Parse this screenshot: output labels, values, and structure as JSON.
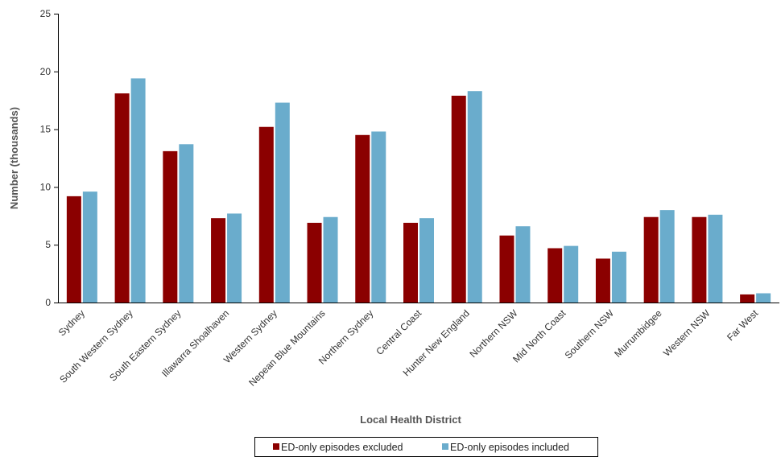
{
  "chart_data": {
    "type": "bar",
    "title": "",
    "xlabel": "Local Health District",
    "ylabel": "Number (thousands)",
    "ylim": [
      0,
      25
    ],
    "yticks": [
      0,
      5,
      10,
      15,
      20,
      25
    ],
    "grid": false,
    "legend_position": "bottom",
    "categories": [
      "Sydney",
      "South Western Sydney",
      "South Eastern Sydney",
      "Illawarra Shoalhaven",
      "Western Sydney",
      "Nepean Blue Mountains",
      "Northern Sydney",
      "Central Coast",
      "Hunter New England",
      "Northern NSW",
      "Mid North Coast",
      "Southern NSW",
      "Murrumbidgee",
      "Western NSW",
      "Far West"
    ],
    "series": [
      {
        "name": "ED-only episodes excluded",
        "color": "#8b0000",
        "values": [
          9.2,
          18.1,
          13.1,
          7.3,
          15.2,
          6.9,
          14.5,
          6.9,
          17.9,
          5.8,
          4.7,
          3.8,
          7.4,
          7.4,
          0.7
        ]
      },
      {
        "name": "ED-only episodes included",
        "color": "#6aaccc",
        "values": [
          9.6,
          19.4,
          13.7,
          7.7,
          17.3,
          7.4,
          14.8,
          7.3,
          18.3,
          6.6,
          4.9,
          4.4,
          8.0,
          7.6,
          0.8
        ]
      }
    ]
  }
}
